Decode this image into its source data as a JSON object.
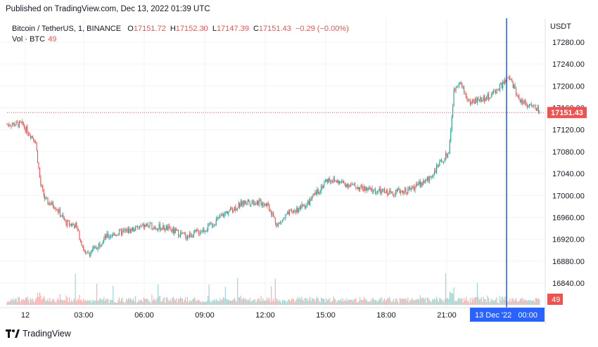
{
  "header": {
    "published": "Published on TradingView.com, Dec 13, 2022 01:39 UTC"
  },
  "legend": {
    "symbol": "Bitcoin / TetherUS, 1, BINANCE",
    "open_label": "O",
    "open": "17151.72",
    "high_label": "H",
    "high": "17152.30",
    "low_label": "L",
    "low": "17147.39",
    "close_label": "C",
    "close": "17151.43",
    "change": "−0.29 (−0.00%)",
    "vol_label": "Vol · BTC",
    "vol_value": "49"
  },
  "axis": {
    "currency": "USDT",
    "price_labels": [
      "17280.00",
      "17240.00",
      "17200.00",
      "17160.00",
      "17120.00",
      "17080.00",
      "17040.00",
      "17000.00",
      "16960.00",
      "16920.00",
      "16880.00",
      "16840.00"
    ],
    "time_labels": [
      "12",
      "03:00",
      "06:00",
      "09:00",
      "12:00",
      "15:00",
      "18:00",
      "21:00"
    ],
    "last_price": "17151.43",
    "vol_badge": "49",
    "crosshair_time": "13 Dec '22   00:00"
  },
  "colors": {
    "up": "#26a69a",
    "down": "#ef5350",
    "crosshair": "#2962ff",
    "grid": "#f0f3fa"
  },
  "footer": {
    "brand": "TradingView"
  },
  "chart_data": {
    "type": "candlestick",
    "title": "Bitcoin / TetherUS, 1, BINANCE",
    "ylabel": "USDT",
    "ylim": [
      16820,
      17300
    ],
    "x_ticks": [
      "12",
      "03:00",
      "06:00",
      "09:00",
      "12:00",
      "15:00",
      "18:00",
      "21:00"
    ],
    "last_close": 17151.43,
    "close_path_hourly": [
      {
        "t": "23:50",
        "v": 17130
      },
      {
        "t": "00:30",
        "v": 17100
      },
      {
        "t": "00:45",
        "v": 17020
      },
      {
        "t": "01:00",
        "v": 16990
      },
      {
        "t": "01:30",
        "v": 16980
      },
      {
        "t": "02:00",
        "v": 16950
      },
      {
        "t": "02:30",
        "v": 16945
      },
      {
        "t": "03:00",
        "v": 16890
      },
      {
        "t": "03:30",
        "v": 16905
      },
      {
        "t": "04:00",
        "v": 16925
      },
      {
        "t": "05:00",
        "v": 16935
      },
      {
        "t": "06:00",
        "v": 16945
      },
      {
        "t": "07:00",
        "v": 16940
      },
      {
        "t": "08:00",
        "v": 16925
      },
      {
        "t": "09:00",
        "v": 16940
      },
      {
        "t": "10:00",
        "v": 16970
      },
      {
        "t": "11:00",
        "v": 16990
      },
      {
        "t": "12:00",
        "v": 16985
      },
      {
        "t": "12:30",
        "v": 16945
      },
      {
        "t": "13:00",
        "v": 16965
      },
      {
        "t": "14:00",
        "v": 16985
      },
      {
        "t": "15:00",
        "v": 17030
      },
      {
        "t": "16:00",
        "v": 17020
      },
      {
        "t": "17:00",
        "v": 17010
      },
      {
        "t": "18:00",
        "v": 17005
      },
      {
        "t": "19:00",
        "v": 17010
      },
      {
        "t": "20:00",
        "v": 17030
      },
      {
        "t": "21:00",
        "v": 17080
      },
      {
        "t": "21:15",
        "v": 17190
      },
      {
        "t": "21:30",
        "v": 17210
      },
      {
        "t": "22:00",
        "v": 17170
      },
      {
        "t": "23:00",
        "v": 17180
      },
      {
        "t": "00:00",
        "v": 17215
      },
      {
        "t": "00:30",
        "v": 17175
      },
      {
        "t": "01:39",
        "v": 17151.43
      }
    ],
    "volume_max_btc_label": "49"
  }
}
